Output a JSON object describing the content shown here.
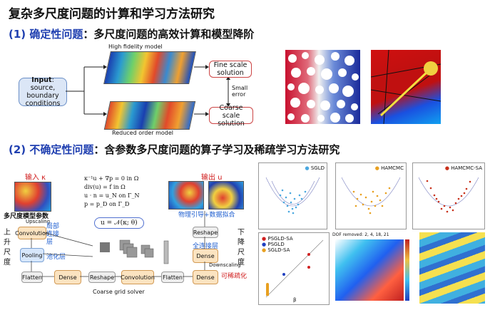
{
  "title": "复杂多尺度问题的计算和学习方法研究",
  "section1": {
    "num": "(1) ",
    "highlight": "确定性问题",
    "rest": "：多尺度问题的高效计算和模型降阶"
  },
  "section2": {
    "num": "(2) ",
    "highlight": "不确定性问题",
    "rest": "：含参数多尺度问题的算子学习及稀疏学习方法研究"
  },
  "flow": {
    "input_bold": "Input",
    "input_rest": ": source, boundary conditions",
    "hf_label": "High fidelity model",
    "ro_label": "Reduced order model",
    "fine": "Fine scale solution",
    "coarse": "Coarse scale solution",
    "small_error": "Small error"
  },
  "eq": {
    "l1": "κ⁻¹u + ∇p = 0   in Ω",
    "l2": "div(u) = f   in Ω",
    "l3": "u · n = u_N   on Γ_N",
    "l4": "p = p_D   on Γ_D",
    "op": "u = 𝒩(κ; θ)"
  },
  "nn": {
    "input_k": "输入 κ",
    "output_u": "输出  u",
    "multiscale_param": "多尺度模型参数",
    "upscaling": "Upscaling",
    "local_conn": "局部连接层",
    "pool_cn": "池化层",
    "up_scale": "上升尺度",
    "down_scale": "下降尺度",
    "physics": "物理引导+数据拟合",
    "fc": "全连接层",
    "downscaling": "Downscaling",
    "sparse": "可稀疏化",
    "coarse_solver": "Coarse grid solver",
    "convolution": "Convolution",
    "pooling": "Pooling",
    "flatten": "Flatten",
    "dense": "Dense",
    "reshape": "Reshape",
    "conv2": "Convolution",
    "flatten2": "Flatten",
    "dense2": "Dense",
    "dense3": "Dense",
    "reshape_top": "Reshape",
    "dense_top": "Dense"
  },
  "plots": {
    "sgld": "SGLD",
    "hamcmc": "HAMCMC",
    "hamcmc_sa": "HAMCMC-SA",
    "legend1": "PSGLD-SA",
    "legend2": "PSGLD",
    "legend3": "SGLD-SA",
    "dof": "DOF removed: 2, 4, 18, 21",
    "xlabel": "β"
  },
  "colors": {
    "blue_text": "#1f3fb0",
    "red_text": "#d01c1c",
    "sgld": "#4aa8e0",
    "hamcmc": "#e8a020",
    "hamcmc_sa": "#c8301a"
  }
}
